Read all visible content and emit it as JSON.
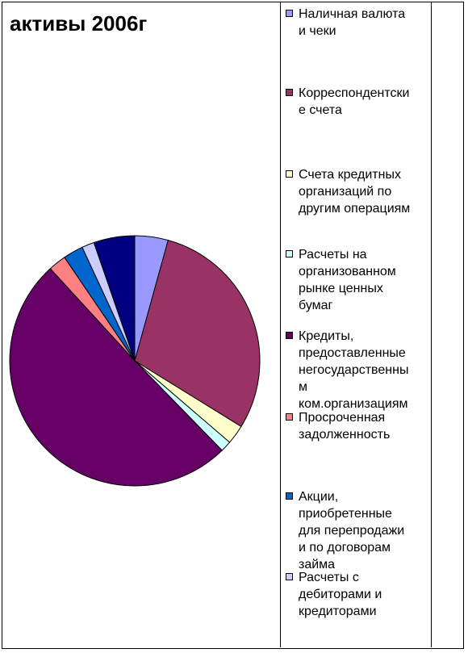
{
  "chart_data": {
    "type": "pie",
    "title": "активы 2006г",
    "legend_position": "right",
    "slices": [
      {
        "label": "Наличная валюта и чеки",
        "value": 4.3,
        "color": "#9999ff"
      },
      {
        "label": "Корреспондентские счета",
        "value": 29.5,
        "color": "#993366"
      },
      {
        "label": "Счета кредитных организаций по другим операциям",
        "value": 2.5,
        "color": "#ffffcc"
      },
      {
        "label": "Расчеты на организованном рынке ценных бумаг",
        "value": 1.4,
        "color": "#ccffff"
      },
      {
        "label": "Кредиты, предоставленные негосударственным ком.организациям",
        "value": 50.5,
        "color": "#660066"
      },
      {
        "label": "Просроченная задолженность",
        "value": 2.3,
        "color": "#ff8080"
      },
      {
        "label": "Акции, приобретенные для перепродажи и по договорам займа",
        "value": 2.6,
        "color": "#0066cc"
      },
      {
        "label": "Расчеты с дебиторами и кредиторами",
        "value": 1.6,
        "color": "#ccccff"
      },
      {
        "label": "",
        "value": 5.3,
        "color": "#000080"
      }
    ]
  },
  "legend_lines": [
    [
      "Наличная валюта",
      "и чеки"
    ],
    [
      "Корреспондентски",
      "е счета"
    ],
    [
      "Счета кредитных",
      "организаций по",
      "другим операциям"
    ],
    [
      "Расчеты на",
      "организованном",
      "рынке ценных",
      "бумаг"
    ],
    [
      "Кредиты,",
      "предоставленные",
      "негосударственны",
      "м",
      "ком.организациям"
    ],
    [
      "Просроченная",
      "задолженность"
    ],
    [
      "Акции,",
      "приобретенные",
      "для перепродажи",
      "и по договорам",
      "займа"
    ],
    [
      "Расчеты с",
      "дебиторами и",
      "кредиторами"
    ]
  ]
}
